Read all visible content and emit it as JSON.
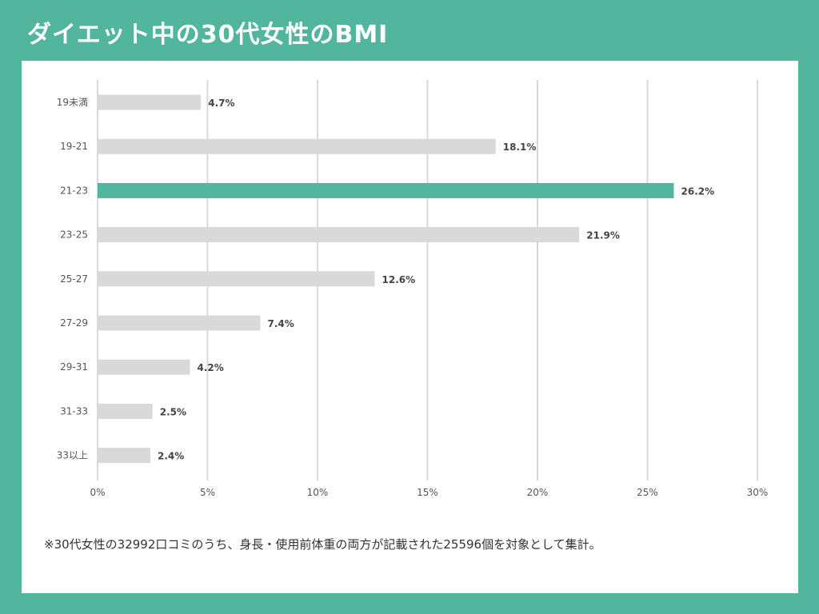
{
  "page": {
    "title": "ダイエット中の30代女性のBMI",
    "footnote": "※30代女性の32992口コミのうち、身長・使用前体重の両方が記載された25596個を対象として集計。"
  },
  "colors": {
    "background": "#52b69f",
    "highlight_bar": "#52b69f",
    "bar": "#d9d9d9",
    "grid": "#d9d9d9"
  },
  "chart_data": {
    "type": "bar",
    "orientation": "horizontal",
    "title": "ダイエット中の30代女性のBMI",
    "categories": [
      "19未満",
      "19-21",
      "21-23",
      "23-25",
      "25-27",
      "27-29",
      "29-31",
      "31-33",
      "33以上"
    ],
    "values": [
      4.7,
      18.1,
      26.2,
      21.9,
      12.6,
      7.4,
      4.2,
      2.5,
      2.4
    ],
    "value_labels": [
      "4.7%",
      "18.1%",
      "26.2%",
      "21.9%",
      "12.6%",
      "7.4%",
      "4.2%",
      "2.5%",
      "2.4%"
    ],
    "highlight_index": 2,
    "xlim": [
      0,
      30
    ],
    "xticks": [
      0,
      5,
      10,
      15,
      20,
      25,
      30
    ],
    "xtick_labels": [
      "0%",
      "5%",
      "10%",
      "15%",
      "20%",
      "25%",
      "30%"
    ],
    "xlabel": "",
    "ylabel": "",
    "grid": true,
    "legend": "none"
  }
}
